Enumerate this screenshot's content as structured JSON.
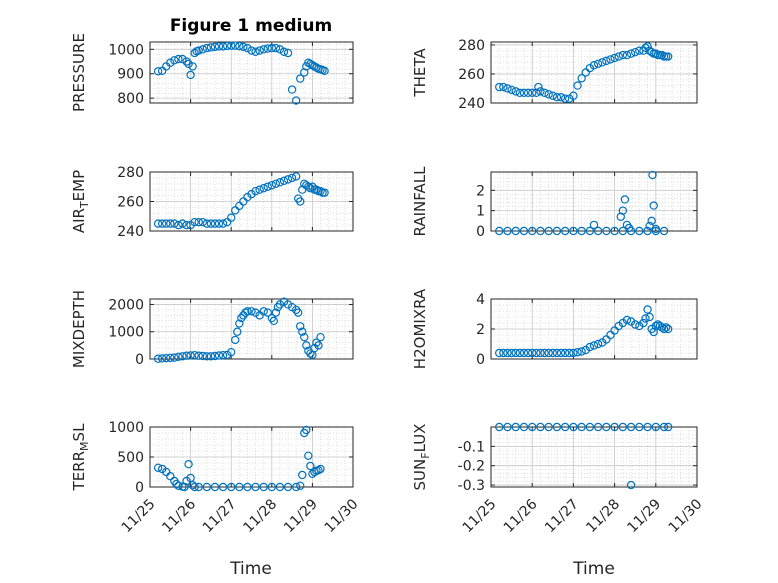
{
  "figure": {
    "title": "Figure 1 medium",
    "xlabel": "Time",
    "xticklabels": [
      "11/25",
      "11/26",
      "11/27",
      "11/28",
      "11/29",
      "11/30"
    ]
  },
  "colors": {
    "marker": "#0072bd",
    "axis": "#262626",
    "grid": "#d9d9d9"
  },
  "chart_data": [
    {
      "type": "scatter",
      "ylabel": "PRESSURE",
      "xlim": [
        0,
        5
      ],
      "ylim": [
        780,
        1030
      ],
      "yticks": [
        800,
        900,
        1000
      ],
      "yticklabels": [
        "800",
        "900",
        "1000"
      ],
      "x": [
        0.2,
        0.3,
        0.4,
        0.5,
        0.6,
        0.7,
        0.8,
        0.9,
        0.95,
        1.0,
        1.05,
        1.1,
        1.15,
        1.2,
        1.3,
        1.4,
        1.5,
        1.6,
        1.7,
        1.8,
        1.9,
        2.0,
        2.1,
        2.2,
        2.3,
        2.4,
        2.5,
        2.6,
        2.7,
        2.8,
        2.9,
        3.0,
        3.1,
        3.2,
        3.3,
        3.4,
        3.5,
        3.6,
        3.7,
        3.8,
        3.85,
        3.9,
        3.95,
        4.0,
        4.05,
        4.1,
        4.15,
        4.2,
        4.25,
        4.3
      ],
      "y": [
        910,
        912,
        930,
        945,
        955,
        960,
        960,
        950,
        940,
        895,
        930,
        985,
        992,
        995,
        1000,
        1005,
        1008,
        1010,
        1012,
        1012,
        1014,
        1015,
        1015,
        1013,
        1010,
        1005,
        995,
        990,
        995,
        1000,
        1003,
        1005,
        1005,
        1000,
        990,
        985,
        835,
        790,
        880,
        905,
        930,
        945,
        940,
        935,
        930,
        925,
        920,
        918,
        915,
        912
      ]
    },
    {
      "type": "scatter",
      "ylabel": "THETA",
      "xlim": [
        0,
        5
      ],
      "ylim": [
        240,
        282
      ],
      "yticks": [
        240,
        260,
        280
      ],
      "yticklabels": [
        "240",
        "260",
        "280"
      ],
      "x": [
        0.2,
        0.3,
        0.4,
        0.5,
        0.6,
        0.7,
        0.8,
        0.9,
        1.0,
        1.1,
        1.15,
        1.2,
        1.3,
        1.4,
        1.5,
        1.6,
        1.7,
        1.8,
        1.9,
        2.0,
        2.1,
        2.2,
        2.3,
        2.4,
        2.5,
        2.6,
        2.7,
        2.8,
        2.9,
        3.0,
        3.1,
        3.2,
        3.3,
        3.4,
        3.5,
        3.6,
        3.7,
        3.75,
        3.8,
        3.85,
        3.9,
        3.95,
        4.0,
        4.05,
        4.1,
        4.15,
        4.2,
        4.25,
        4.3
      ],
      "y": [
        251,
        251,
        250,
        249,
        248,
        247,
        247,
        247,
        247,
        247,
        251,
        248,
        247,
        246,
        245,
        244,
        244,
        243,
        243,
        245,
        252,
        257,
        261,
        264,
        266,
        267,
        268,
        269,
        270,
        271,
        272,
        273,
        273,
        274,
        275,
        276,
        276,
        278,
        279,
        276,
        275,
        274,
        274,
        273,
        273,
        273,
        272,
        272,
        272
      ]
    },
    {
      "type": "scatter",
      "ylabel": "AIR",
      "ylabel_sub": "T",
      "ylabel_post": "EMP",
      "xlim": [
        0,
        5
      ],
      "ylim": [
        240,
        280
      ],
      "yticks": [
        240,
        260,
        280
      ],
      "yticklabels": [
        "240",
        "260",
        "280"
      ],
      "x": [
        0.2,
        0.3,
        0.4,
        0.5,
        0.6,
        0.7,
        0.8,
        0.9,
        1.0,
        1.1,
        1.2,
        1.3,
        1.4,
        1.5,
        1.6,
        1.7,
        1.8,
        1.9,
        2.0,
        2.1,
        2.2,
        2.3,
        2.4,
        2.5,
        2.6,
        2.7,
        2.8,
        2.9,
        3.0,
        3.1,
        3.2,
        3.3,
        3.4,
        3.5,
        3.6,
        3.65,
        3.7,
        3.75,
        3.8,
        3.85,
        3.9,
        3.95,
        4.0,
        4.05,
        4.1,
        4.15,
        4.2,
        4.25,
        4.3
      ],
      "y": [
        245,
        245,
        245,
        245,
        245,
        244,
        245,
        244,
        244,
        246,
        246,
        246,
        245,
        245,
        245,
        245,
        245,
        246,
        249,
        254,
        257,
        260,
        263,
        265,
        267,
        268,
        269,
        270,
        271,
        272,
        273,
        274,
        275,
        276,
        277,
        262,
        260,
        268,
        272,
        271,
        270,
        269,
        270,
        268,
        268,
        267,
        267,
        266,
        266
      ]
    },
    {
      "type": "scatter",
      "ylabel": "RAINFALL",
      "xlim": [
        0,
        5
      ],
      "ylim": [
        0,
        2.9
      ],
      "yticks": [
        0,
        1,
        2
      ],
      "yticklabels": [
        "0",
        "1",
        "2"
      ],
      "x": [
        0.2,
        0.4,
        0.6,
        0.8,
        1.0,
        1.2,
        1.4,
        1.6,
        1.8,
        2.0,
        2.2,
        2.4,
        2.6,
        2.8,
        3.0,
        3.2,
        3.4,
        3.6,
        3.8,
        4.0,
        4.2,
        2.5,
        3.15,
        3.2,
        3.25,
        3.3,
        3.35,
        3.85,
        3.9,
        3.92,
        3.95,
        4.0
      ],
      "y": [
        0,
        0,
        0,
        0,
        0,
        0,
        0,
        0,
        0,
        0,
        0,
        0,
        0,
        0,
        0,
        0,
        0,
        0,
        0,
        0,
        0,
        0.3,
        0.7,
        1.0,
        1.55,
        0.3,
        0.15,
        0.25,
        0.5,
        2.75,
        1.25,
        0.1
      ]
    },
    {
      "type": "scatter",
      "ylabel": "MIXDEPTH",
      "xlim": [
        0,
        5
      ],
      "ylim": [
        0,
        2200
      ],
      "yticks": [
        0,
        1000,
        2000
      ],
      "yticklabels": [
        "0",
        "1000",
        "2000"
      ],
      "x": [
        0.2,
        0.3,
        0.4,
        0.5,
        0.6,
        0.7,
        0.8,
        0.9,
        1.0,
        1.1,
        1.2,
        1.3,
        1.4,
        1.5,
        1.6,
        1.7,
        1.8,
        1.9,
        2.0,
        2.1,
        2.15,
        2.2,
        2.25,
        2.3,
        2.35,
        2.4,
        2.5,
        2.6,
        2.7,
        2.8,
        2.9,
        3.0,
        3.05,
        3.1,
        3.15,
        3.2,
        3.3,
        3.4,
        3.5,
        3.6,
        3.65,
        3.7,
        3.75,
        3.8,
        3.85,
        3.9,
        3.95,
        4.0,
        4.05,
        4.1,
        4.15,
        4.2
      ],
      "y": [
        10,
        20,
        30,
        40,
        50,
        80,
        100,
        120,
        130,
        140,
        120,
        110,
        100,
        100,
        110,
        130,
        140,
        150,
        250,
        700,
        1000,
        1300,
        1500,
        1600,
        1700,
        1750,
        1750,
        1700,
        1600,
        1750,
        1700,
        1500,
        1400,
        1700,
        1900,
        2000,
        2100,
        2000,
        1900,
        1800,
        1700,
        1200,
        1000,
        800,
        500,
        300,
        200,
        150,
        400,
        600,
        500,
        800
      ]
    },
    {
      "type": "scatter",
      "ylabel": "H2OMIXRA",
      "xlim": [
        0,
        5
      ],
      "ylim": [
        0,
        4
      ],
      "yticks": [
        0,
        2,
        4
      ],
      "yticklabels": [
        "0",
        "2",
        "4"
      ],
      "x": [
        0.2,
        0.3,
        0.4,
        0.5,
        0.6,
        0.7,
        0.8,
        0.9,
        1.0,
        1.1,
        1.2,
        1.3,
        1.4,
        1.5,
        1.6,
        1.7,
        1.8,
        1.9,
        2.0,
        2.1,
        2.2,
        2.3,
        2.4,
        2.5,
        2.6,
        2.7,
        2.8,
        2.9,
        3.0,
        3.1,
        3.2,
        3.3,
        3.4,
        3.5,
        3.6,
        3.7,
        3.75,
        3.8,
        3.85,
        3.9,
        3.95,
        4.0,
        4.05,
        4.1,
        4.15,
        4.2,
        4.25,
        4.3
      ],
      "y": [
        0.4,
        0.4,
        0.4,
        0.4,
        0.4,
        0.4,
        0.4,
        0.4,
        0.4,
        0.4,
        0.4,
        0.4,
        0.4,
        0.4,
        0.4,
        0.4,
        0.4,
        0.4,
        0.4,
        0.45,
        0.5,
        0.6,
        0.8,
        0.9,
        1.0,
        1.1,
        1.3,
        1.6,
        1.9,
        2.2,
        2.4,
        2.6,
        2.5,
        2.3,
        2.2,
        2.4,
        2.7,
        3.3,
        2.8,
        2.0,
        1.8,
        2.2,
        2.3,
        2.2,
        2.1,
        2.0,
        2.1,
        2.0
      ]
    },
    {
      "type": "scatter",
      "ylabel": "TERR",
      "ylabel_sub": "M",
      "ylabel_post": "SL",
      "xlim": [
        0,
        5
      ],
      "ylim": [
        0,
        1000
      ],
      "yticks": [
        0,
        500,
        1000
      ],
      "yticklabels": [
        "0",
        "500",
        "1000"
      ],
      "x": [
        0.2,
        0.3,
        0.4,
        0.5,
        0.6,
        0.65,
        0.7,
        0.8,
        0.85,
        0.9,
        0.95,
        1.0,
        1.05,
        1.1,
        1.2,
        1.4,
        1.6,
        1.8,
        2.0,
        2.2,
        2.4,
        2.6,
        2.8,
        3.0,
        3.2,
        3.4,
        3.6,
        3.7,
        3.75,
        3.8,
        3.85,
        3.9,
        3.95,
        4.0,
        4.05,
        4.1,
        4.15,
        4.2
      ],
      "y": [
        320,
        300,
        250,
        180,
        100,
        50,
        20,
        5,
        0,
        100,
        380,
        150,
        30,
        0,
        0,
        0,
        0,
        0,
        0,
        0,
        0,
        0,
        0,
        0,
        0,
        0,
        0,
        20,
        200,
        900,
        950,
        520,
        350,
        220,
        250,
        270,
        280,
        300
      ]
    },
    {
      "type": "scatter",
      "ylabel": "SUN",
      "ylabel_sub": "F",
      "ylabel_post": "LUX",
      "xlim": [
        0,
        5
      ],
      "ylim": [
        -0.31,
        0
      ],
      "yticks": [
        -0.3,
        -0.2,
        -0.1
      ],
      "yticklabels": [
        "-0.3",
        "-0.2",
        "-0.1"
      ],
      "x": [
        0.2,
        0.4,
        0.6,
        0.8,
        1.0,
        1.2,
        1.4,
        1.6,
        1.8,
        2.0,
        2.2,
        2.4,
        2.6,
        2.8,
        3.0,
        3.2,
        3.4,
        3.6,
        3.8,
        4.0,
        4.2,
        4.3,
        3.4
      ],
      "y": [
        0,
        0,
        0,
        0,
        0,
        0,
        0,
        0,
        0,
        0,
        0,
        0,
        0,
        0,
        0,
        0,
        0,
        0,
        0,
        0,
        0,
        0,
        -0.3
      ]
    }
  ]
}
